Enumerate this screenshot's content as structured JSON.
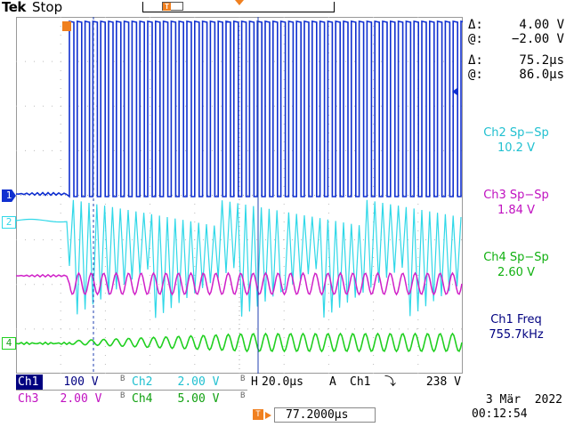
{
  "header": {
    "brand": "Tek",
    "run_state": "Stop"
  },
  "colors": {
    "ch1": "#1030d0",
    "ch2": "#30d8e8",
    "ch3": "#d020c8",
    "ch4": "#20d020",
    "panel_ch1": "#000080",
    "trigger": "#f08020"
  },
  "markers": {
    "ch1": "1",
    "ch2": "2",
    "ch4": "4",
    "trigger": "T"
  },
  "cursor_readout": {
    "dv_label": "Δ:",
    "dv_value": "4.00 V",
    "v_at_label": "@:",
    "v_at_value": "−2.00 V",
    "dt_label": "Δ:",
    "dt_value": "75.2µs",
    "t_at_label": "@:",
    "t_at_value": "86.0µs"
  },
  "measurements": [
    {
      "label": "Ch2 Sp−Sp",
      "value": "10.2 V",
      "color": "#20c0d0"
    },
    {
      "label": "Ch3 Sp−Sp",
      "value": "1.84 V",
      "color": "#c010c0"
    },
    {
      "label": "Ch4 Sp−Sp",
      "value": "2.60 V",
      "color": "#10b010"
    },
    {
      "label": "Ch1 Freq",
      "value": "755.7kHz",
      "color": "#000080"
    }
  ],
  "settings": {
    "ch1_label": "Ch1",
    "ch1_scale": "100 V",
    "ch2_label": "Ch2",
    "ch2_scale": "2.00 V",
    "ch3_label": "Ch3",
    "ch3_scale": "2.00 V",
    "ch4_label": "Ch4",
    "ch4_scale": "5.00 V",
    "bw_mark": "B",
    "horizontal_label": "H",
    "horizontal_scale": "20.0µs",
    "trigger_mode": "A",
    "trigger_source": "Ch1",
    "trigger_slope": "⤵",
    "trigger_level": "238 V",
    "trigger_position": "77.2000µs"
  },
  "datetime": {
    "date": "3 Mär  2022",
    "time": "00:12:54"
  }
}
